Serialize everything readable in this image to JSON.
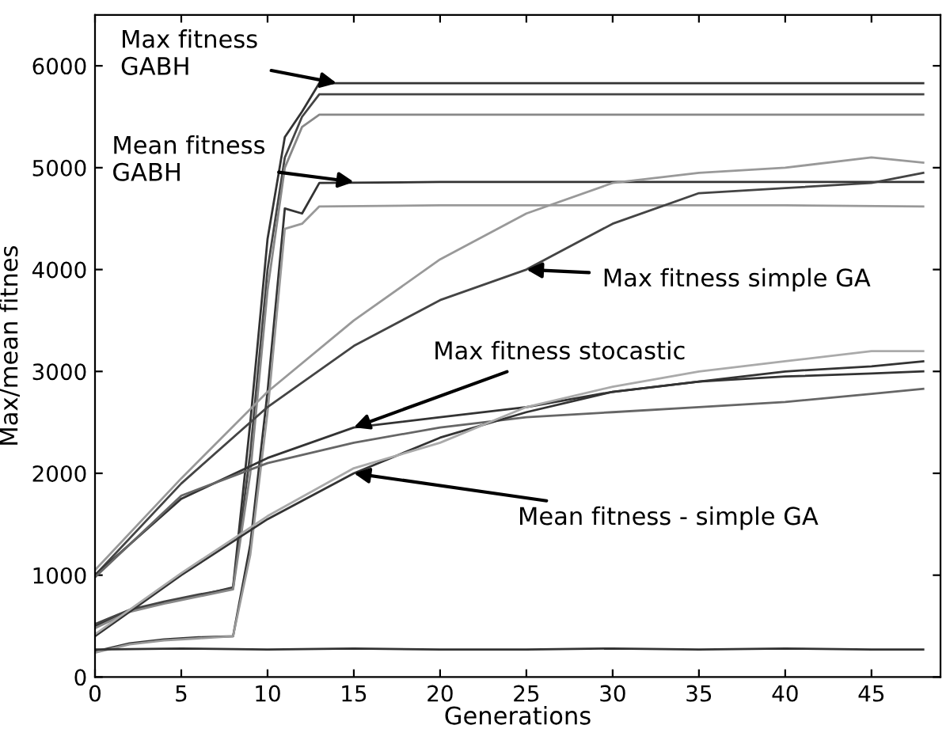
{
  "chart_data": {
    "type": "line",
    "xlabel": "Generations",
    "ylabel": "Max/mean fitnes",
    "xlim": [
      0,
      49
    ],
    "ylim": [
      0,
      6500
    ],
    "xticks": [
      0,
      5,
      10,
      15,
      20,
      25,
      30,
      35,
      40,
      45
    ],
    "yticks": [
      0,
      1000,
      2000,
      3000,
      4000,
      5000,
      6000
    ],
    "grid": false,
    "legend": false,
    "marker": "none",
    "line_style": "solid",
    "series": [
      {
        "color": "#333333",
        "x": [
          0,
          2,
          4,
          6,
          8,
          9,
          10,
          11,
          12,
          13,
          20,
          30,
          40,
          48
        ],
        "values": [
          500,
          650,
          730,
          800,
          880,
          2500,
          4300,
          5300,
          5550,
          5830,
          5830,
          5830,
          5830,
          5830
        ]
      },
      {
        "color": "#444444",
        "x": [
          0,
          2,
          4,
          6,
          8,
          9,
          10,
          11,
          12,
          13,
          20,
          30,
          40,
          48
        ],
        "values": [
          520,
          660,
          740,
          810,
          870,
          2200,
          4000,
          5100,
          5500,
          5720,
          5720,
          5720,
          5720,
          5720
        ]
      },
      {
        "color": "#888888",
        "x": [
          0,
          2,
          4,
          6,
          8,
          9,
          10,
          11,
          12,
          13,
          20,
          30,
          40,
          48
        ],
        "values": [
          480,
          640,
          720,
          790,
          860,
          2000,
          3800,
          5000,
          5400,
          5520,
          5520,
          5520,
          5520,
          5520
        ]
      },
      {
        "color": "#333333",
        "x": [
          0,
          2,
          4,
          6,
          8,
          9,
          10,
          11,
          12,
          13,
          20,
          30,
          40,
          48
        ],
        "values": [
          250,
          330,
          370,
          390,
          400,
          1300,
          2800,
          4600,
          4550,
          4850,
          4860,
          4860,
          4860,
          4860
        ]
      },
      {
        "color": "#999999",
        "x": [
          0,
          2,
          4,
          6,
          8,
          9,
          10,
          11,
          12,
          13,
          20,
          30,
          40,
          48
        ],
        "values": [
          240,
          320,
          360,
          380,
          400,
          1200,
          2600,
          4400,
          4450,
          4620,
          4630,
          4630,
          4630,
          4620
        ]
      },
      {
        "color": "#444444",
        "x": [
          0,
          5,
          10,
          15,
          20,
          25,
          30,
          35,
          40,
          45,
          48
        ],
        "values": [
          1000,
          1900,
          2650,
          3250,
          3700,
          4000,
          4450,
          4750,
          4800,
          4850,
          4950
        ]
      },
      {
        "color": "#999999",
        "x": [
          0,
          5,
          10,
          15,
          20,
          25,
          30,
          35,
          40,
          45,
          48
        ],
        "values": [
          1050,
          1950,
          2800,
          3500,
          4100,
          4550,
          4850,
          4950,
          5000,
          5100,
          5050
        ]
      },
      {
        "color": "#333333",
        "x": [
          0,
          5,
          10,
          15,
          20,
          25,
          30,
          35,
          40,
          45,
          48
        ],
        "values": [
          1000,
          1750,
          2150,
          2450,
          2550,
          2650,
          2800,
          2900,
          2950,
          2980,
          3000
        ]
      },
      {
        "color": "#666666",
        "x": [
          0,
          5,
          10,
          15,
          20,
          25,
          30,
          35,
          40,
          45,
          48
        ],
        "values": [
          980,
          1780,
          2100,
          2300,
          2450,
          2550,
          2600,
          2650,
          2700,
          2780,
          2830
        ]
      },
      {
        "color": "#333333",
        "x": [
          0,
          5,
          10,
          15,
          20,
          25,
          30,
          35,
          40,
          45,
          48
        ],
        "values": [
          400,
          1000,
          1550,
          2000,
          2350,
          2600,
          2800,
          2900,
          3000,
          3050,
          3100
        ]
      },
      {
        "color": "#aaaaaa",
        "x": [
          0,
          5,
          10,
          15,
          20,
          25,
          30,
          35,
          40,
          45,
          48
        ],
        "values": [
          420,
          1020,
          1580,
          2050,
          2300,
          2650,
          2850,
          3000,
          3100,
          3200,
          3200
        ]
      },
      {
        "color": "#333333",
        "x": [
          0,
          5,
          10,
          15,
          20,
          25,
          30,
          35,
          40,
          45,
          48
        ],
        "values": [
          270,
          280,
          270,
          280,
          270,
          270,
          280,
          270,
          280,
          270,
          270
        ]
      }
    ],
    "annotations": [
      {
        "text": "Max fitness\nGABH",
        "x": 14,
        "y": 5830
      },
      {
        "text": "Mean fitness\nGABH",
        "x": 15,
        "y": 4860
      },
      {
        "text": "Max fitness simple GA",
        "x": 25,
        "y": 4000
      },
      {
        "text": "Max fitness stocastic",
        "x": 15,
        "y": 2450
      },
      {
        "text": "Mean fitness - simple GA",
        "x": 15,
        "y": 2000
      }
    ]
  }
}
